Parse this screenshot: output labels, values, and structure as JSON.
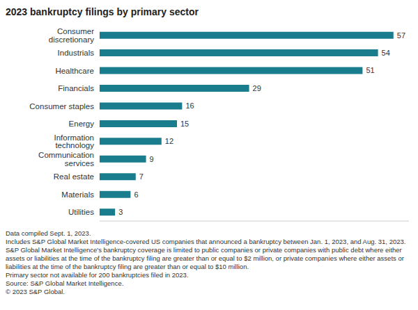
{
  "chart_data": {
    "type": "bar",
    "title": "2023 bankruptcy filings by primary sector",
    "orientation": "horizontal",
    "categories": [
      "Consumer discretionary",
      "Industrials",
      "Healthcare",
      "Financials",
      "Consumer staples",
      "Energy",
      "Information technology",
      "Communication services",
      "Real estate",
      "Materials",
      "Utilities"
    ],
    "values": [
      57,
      54,
      51,
      29,
      16,
      15,
      12,
      9,
      7,
      6,
      3
    ],
    "color": "#1a7d8e",
    "xlim": [
      0,
      60
    ],
    "grid": false,
    "data_labels": true,
    "tick_labels": "y",
    "footnotes": [
      "Data compiled Sept. 1, 2023.",
      "Includes S&P Global Market Intelligence-covered US companies that announced a bankruptcy between Jan. 1, 2023, and Aug. 31, 2023.",
      "S&P Global Market Intelligence's bankruptcy coverage is limited to public companies or private companies with public debt where either assets or liabilities at the time of the bankruptcy filing are greater than or equal to $2 million, or private companies where either assets or liabilities at the time of the bankruptcy filing are greater than or equal to $10 million.",
      "Primary sector not available for 200 bankruptcies filed in 2023.",
      "Source: S&P Global Market Intelligence.",
      "© 2023 S&P Global."
    ]
  }
}
